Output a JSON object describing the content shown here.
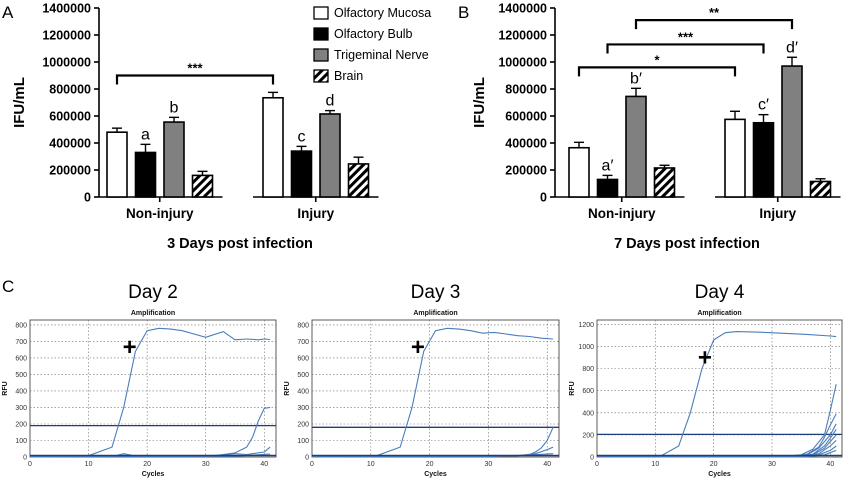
{
  "colors": {
    "curve": "#4a7dbb",
    "threshold": "#1c3f7a",
    "grid": "#6d6d6d",
    "bar_white": "#ffffff",
    "bar_black": "#000000",
    "bar_gray": "#808080"
  },
  "legend": {
    "entries": [
      {
        "label": "Olfactory Mucosa",
        "style": "white"
      },
      {
        "label": "Olfactory Bulb",
        "style": "black"
      },
      {
        "label": "Trigeminal Nerve",
        "style": "gray"
      },
      {
        "label": "Brain",
        "style": "hatch"
      }
    ]
  },
  "chart_data": [
    {
      "panel": "A",
      "type": "bar",
      "title": "3 Days post infection",
      "ylabel": "IFU/mL",
      "xlabel": "",
      "categories": [
        "Non-injury",
        "Injury"
      ],
      "ylim": [
        0,
        1400000
      ],
      "yticks": [
        "0",
        "200000",
        "400000",
        "600000",
        "800000",
        "1000000",
        "1200000",
        "1400000"
      ],
      "series": [
        {
          "name": "Olfactory Mucosa",
          "style": "white",
          "values": [
            480000,
            735000
          ],
          "errors": [
            30000,
            40000
          ],
          "labels": [
            "",
            ""
          ]
        },
        {
          "name": "Olfactory Bulb",
          "style": "black",
          "values": [
            330000,
            340000
          ],
          "errors": [
            60000,
            35000
          ],
          "labels": [
            "a",
            "c"
          ]
        },
        {
          "name": "Trigeminal Nerve",
          "style": "gray",
          "values": [
            555000,
            615000
          ],
          "errors": [
            35000,
            25000
          ],
          "labels": [
            "b",
            "d"
          ]
        },
        {
          "name": "Brain",
          "style": "hatch",
          "values": [
            160000,
            245000
          ],
          "errors": [
            30000,
            50000
          ],
          "labels": [
            "",
            ""
          ]
        }
      ],
      "significance": [
        {
          "label": "***",
          "from": [
            0,
            0
          ],
          "to": [
            1,
            0
          ],
          "y": 900000
        }
      ]
    },
    {
      "panel": "B",
      "type": "bar",
      "title": "7 Days post infection",
      "ylabel": "IFU/mL",
      "xlabel": "",
      "categories": [
        "Non-injury",
        "Injury"
      ],
      "ylim": [
        0,
        1400000
      ],
      "yticks": [
        "0",
        "200000",
        "400000",
        "600000",
        "800000",
        "1000000",
        "1200000",
        "1400000"
      ],
      "series": [
        {
          "name": "Olfactory Mucosa",
          "style": "white",
          "values": [
            365000,
            575000
          ],
          "errors": [
            40000,
            60000
          ],
          "labels": [
            "",
            ""
          ]
        },
        {
          "name": "Olfactory Bulb",
          "style": "black",
          "values": [
            130000,
            550000
          ],
          "errors": [
            30000,
            60000
          ],
          "labels": [
            "a′",
            "c′"
          ]
        },
        {
          "name": "Trigeminal Nerve",
          "style": "gray",
          "values": [
            745000,
            970000
          ],
          "errors": [
            60000,
            65000
          ],
          "labels": [
            "b′",
            "d′"
          ]
        },
        {
          "name": "Brain",
          "style": "hatch",
          "values": [
            215000,
            115000
          ],
          "errors": [
            20000,
            20000
          ],
          "labels": [
            "",
            ""
          ]
        }
      ],
      "significance": [
        {
          "label": "*",
          "from": [
            0,
            0
          ],
          "to": [
            1,
            0
          ],
          "y": 960000
        },
        {
          "label": "***",
          "from": [
            0,
            1
          ],
          "to": [
            1,
            1
          ],
          "y": 1130000
        },
        {
          "label": "**",
          "from": [
            0,
            2
          ],
          "to": [
            1,
            2
          ],
          "y": 1310000
        }
      ]
    },
    {
      "panel": "C",
      "type": "line",
      "title": "Day 2",
      "subtitle": "Amplification",
      "xlabel": "Cycles",
      "ylabel": "RFU",
      "xlim": [
        0,
        42
      ],
      "ylim": [
        0,
        830
      ],
      "xticks": [
        0,
        10,
        20,
        30,
        40
      ],
      "yticks": [
        0,
        100,
        200,
        300,
        400,
        500,
        600,
        700,
        800
      ],
      "threshold": 190,
      "marker": {
        "symbol": "+",
        "x": 17,
        "y": 665
      },
      "series": [
        {
          "x": [
            0,
            10,
            14,
            16,
            18,
            20,
            22,
            24,
            26,
            28,
            30,
            33,
            35,
            37,
            39,
            40,
            41
          ],
          "y": [
            5,
            8,
            60,
            300,
            640,
            765,
            780,
            775,
            765,
            745,
            725,
            760,
            710,
            715,
            710,
            715,
            712
          ]
        },
        {
          "x": [
            0,
            28,
            32,
            35,
            37,
            38,
            39,
            40,
            41
          ],
          "y": [
            3,
            5,
            10,
            25,
            60,
            120,
            220,
            295,
            300
          ]
        },
        {
          "x": [
            0,
            20,
            30,
            33,
            35,
            37,
            40,
            41
          ],
          "y": [
            2,
            4,
            6,
            12,
            20,
            15,
            30,
            60
          ]
        },
        {
          "x": [
            0,
            14,
            16,
            18,
            25,
            35,
            41
          ],
          "y": [
            1,
            3,
            20,
            6,
            3,
            5,
            18
          ]
        }
      ]
    },
    {
      "panel": "C",
      "type": "line",
      "title": "Day 3",
      "subtitle": "Amplification",
      "xlabel": "Cycles",
      "ylabel": "RFU",
      "xlim": [
        0,
        42
      ],
      "ylim": [
        0,
        830
      ],
      "xticks": [
        0,
        10,
        20,
        30,
        40
      ],
      "yticks": [
        0,
        100,
        200,
        300,
        400,
        500,
        600,
        700,
        800
      ],
      "threshold": 180,
      "marker": {
        "symbol": "+",
        "x": 18,
        "y": 665
      },
      "series": [
        {
          "x": [
            0,
            11,
            15,
            17,
            19,
            21,
            23,
            25,
            27,
            29,
            31,
            33,
            35,
            37,
            39,
            41
          ],
          "y": [
            5,
            8,
            60,
            300,
            640,
            765,
            780,
            775,
            765,
            750,
            755,
            745,
            735,
            730,
            720,
            715
          ]
        },
        {
          "x": [
            0,
            30,
            35,
            37,
            38,
            39,
            40,
            41
          ],
          "y": [
            3,
            4,
            8,
            15,
            30,
            55,
            100,
            180
          ]
        },
        {
          "x": [
            0,
            30,
            35,
            38,
            40,
            41
          ],
          "y": [
            2,
            4,
            8,
            20,
            45,
            60
          ]
        },
        {
          "x": [
            0,
            20,
            30,
            36,
            41
          ],
          "y": [
            1,
            3,
            4,
            10,
            20
          ]
        }
      ]
    },
    {
      "panel": "C",
      "type": "line",
      "title": "Day 4",
      "subtitle": "Amplification",
      "xlabel": "Cycles",
      "ylabel": "RFU",
      "xlim": [
        0,
        42
      ],
      "ylim": [
        0,
        1240
      ],
      "xticks": [
        0,
        10,
        20,
        30,
        40
      ],
      "yticks": [
        0,
        200,
        400,
        600,
        800,
        1000,
        1200
      ],
      "threshold": 205,
      "marker": {
        "symbol": "+",
        "x": 18.5,
        "y": 900
      },
      "series": [
        {
          "x": [
            0,
            11,
            14,
            16,
            18,
            20,
            22,
            24,
            28,
            32,
            36,
            40,
            41
          ],
          "y": [
            8,
            12,
            100,
            400,
            800,
            1060,
            1125,
            1135,
            1130,
            1120,
            1110,
            1095,
            1090
          ]
        },
        {
          "x": [
            0,
            32,
            35,
            37,
            39,
            40,
            41
          ],
          "y": [
            3,
            6,
            20,
            70,
            200,
            420,
            660
          ]
        },
        {
          "x": [
            0,
            33,
            36,
            38,
            39,
            40,
            41
          ],
          "y": [
            3,
            5,
            25,
            90,
            180,
            290,
            390
          ]
        },
        {
          "x": [
            0,
            33,
            36,
            38,
            40,
            41
          ],
          "y": [
            2,
            5,
            20,
            80,
            200,
            300
          ]
        },
        {
          "x": [
            0,
            34,
            37,
            39,
            40,
            41
          ],
          "y": [
            2,
            5,
            25,
            100,
            170,
            250
          ]
        },
        {
          "x": [
            0,
            34,
            37,
            39,
            41
          ],
          "y": [
            2,
            4,
            20,
            80,
            200
          ]
        },
        {
          "x": [
            0,
            35,
            38,
            40,
            41
          ],
          "y": [
            2,
            4,
            30,
            100,
            150
          ]
        },
        {
          "x": [
            0,
            35,
            38,
            40,
            41
          ],
          "y": [
            1,
            3,
            20,
            60,
            100
          ]
        },
        {
          "x": [
            0,
            36,
            39,
            41
          ],
          "y": [
            1,
            3,
            20,
            60
          ]
        }
      ]
    }
  ],
  "panel_labels": [
    "A",
    "B",
    "C"
  ]
}
